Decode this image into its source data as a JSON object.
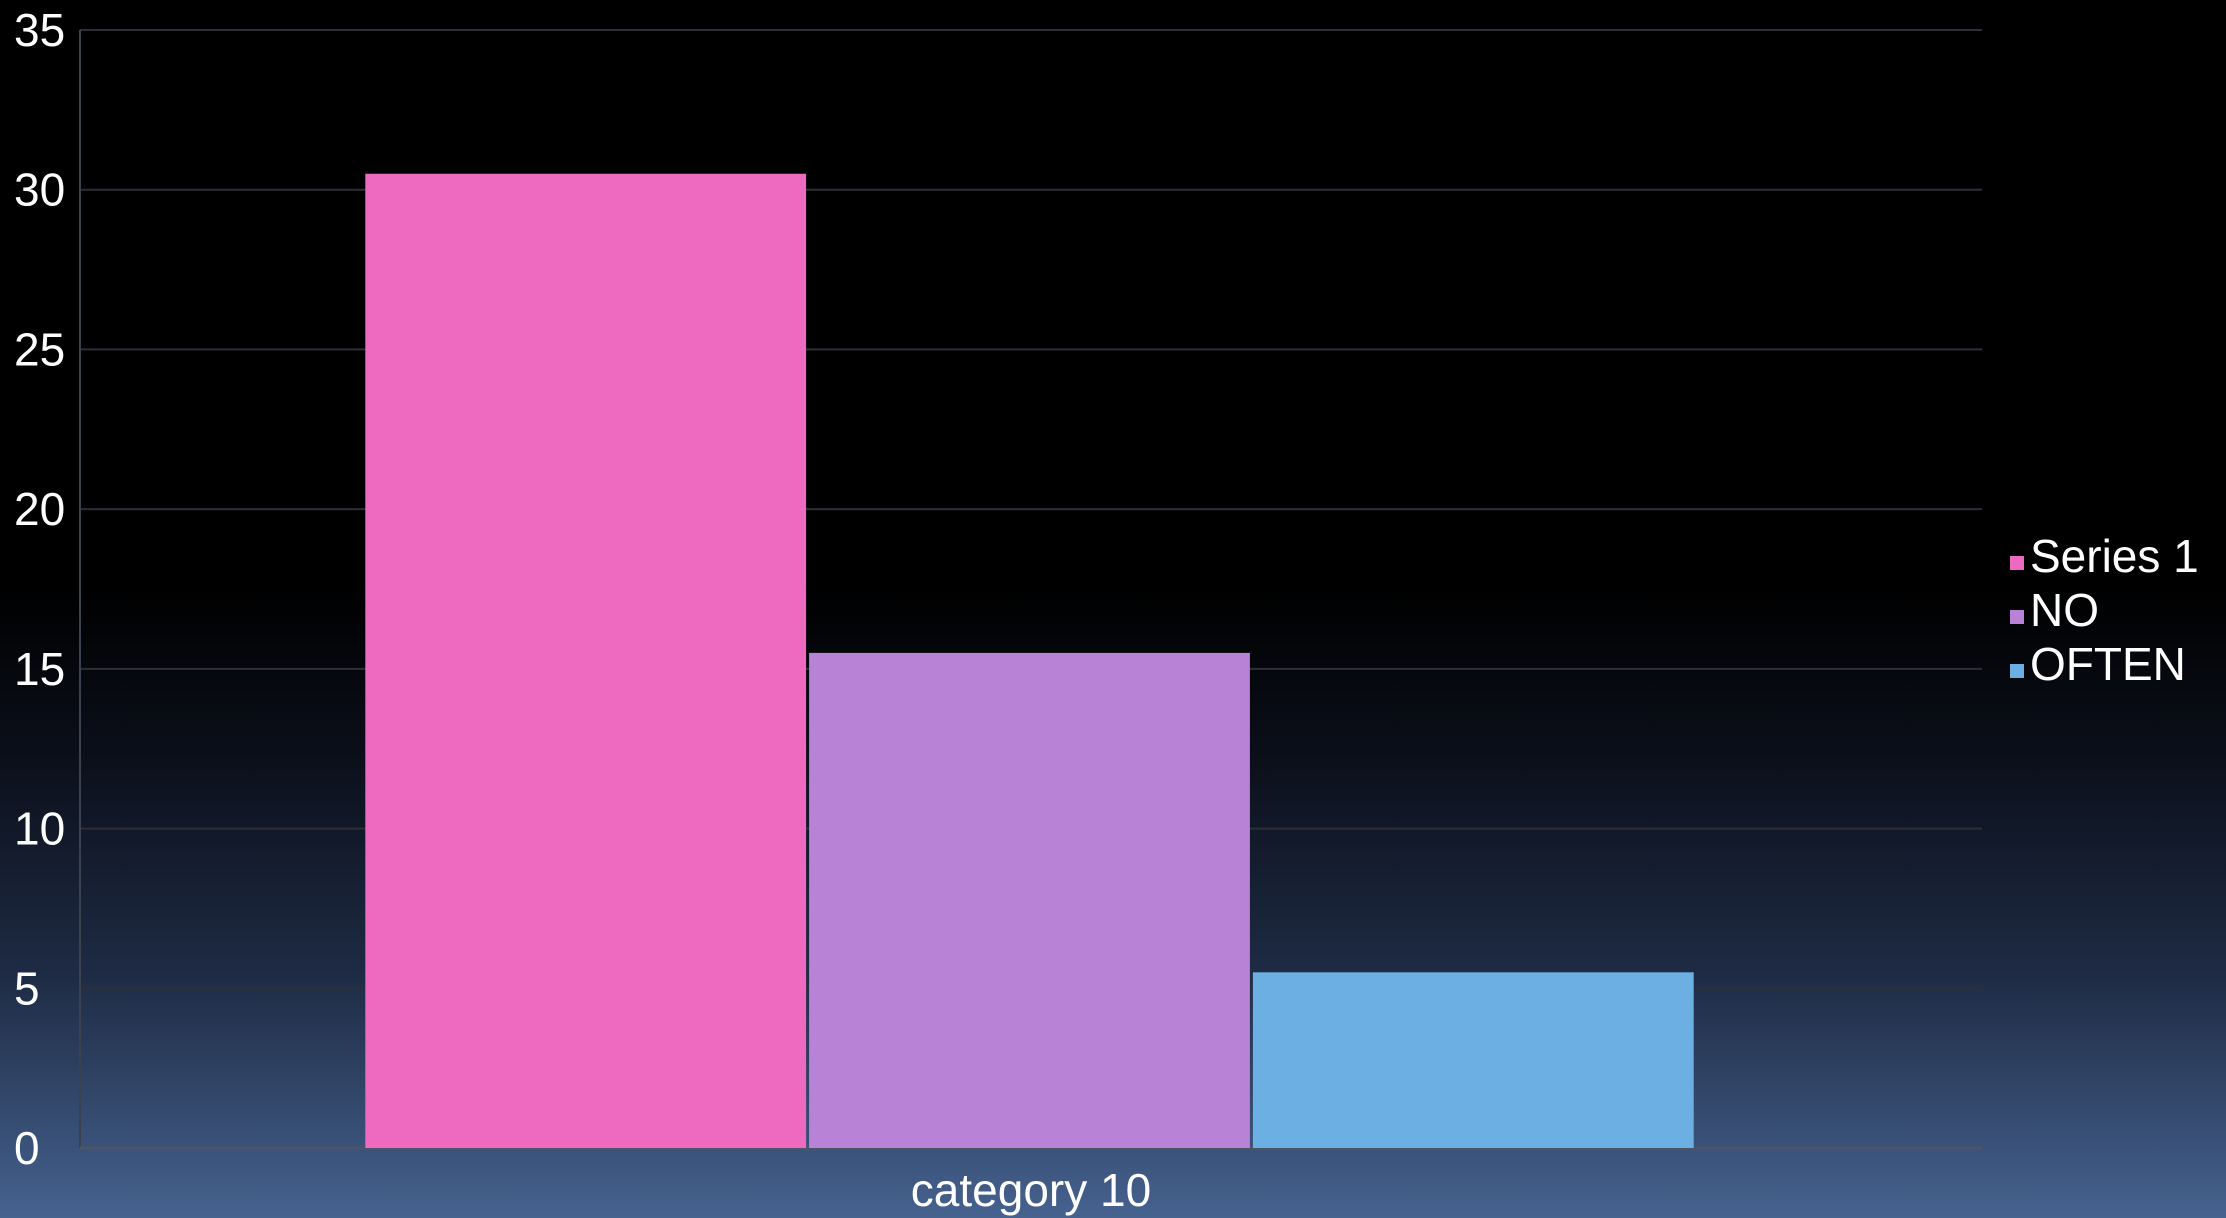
{
  "chart_data": {
    "type": "bar",
    "categories": [
      "category 10"
    ],
    "series": [
      {
        "name": "Series 1",
        "values": [
          30.5
        ],
        "color": "#ee69c0"
      },
      {
        "name": "NO",
        "values": [
          15.5
        ],
        "color": "#b883d6"
      },
      {
        "name": "OFTEN",
        "values": [
          5.5
        ],
        "color": "#6cb0e3"
      }
    ],
    "ylim": [
      0,
      35
    ],
    "yticks": [
      0,
      5,
      10,
      15,
      20,
      25,
      30,
      35
    ],
    "grid": true,
    "legend": "right",
    "title": "",
    "xlabel": "",
    "ylabel": ""
  }
}
